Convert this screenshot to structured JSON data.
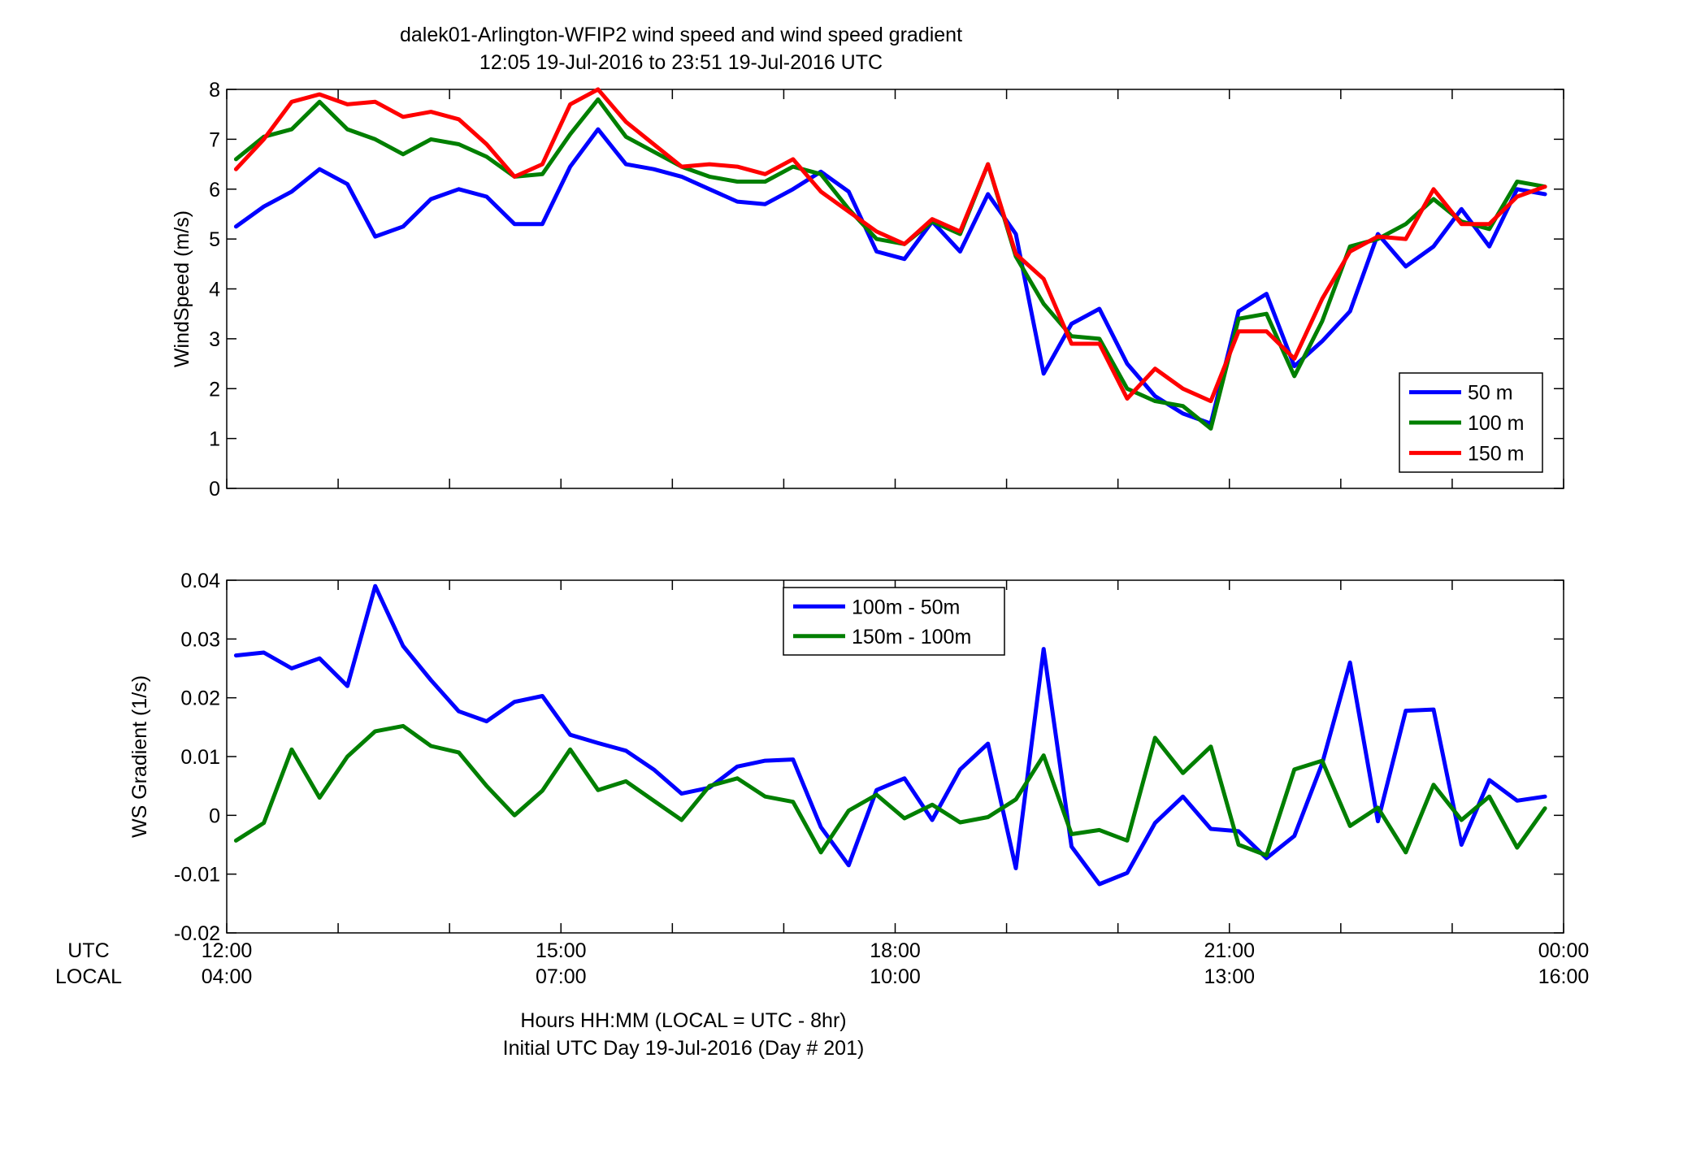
{
  "figure": {
    "title_line1": "dalek01-Arlington-WFIP2  wind speed and wind speed gradient",
    "title_line2": "12:05 19-Jul-2016 to 23:51 19-Jul-2016  UTC",
    "xlabel_line1": "Hours HH:MM  (LOCAL = UTC - 8hr)",
    "xlabel_line2": "Initial UTC Day 19-Jul-2016 (Day # 201)",
    "row_label_utc": "UTC",
    "row_label_local": "LOCAL"
  },
  "chart_data": [
    {
      "type": "line",
      "ylabel": "WindSpeed (m/s)",
      "xlim": [
        12,
        24
      ],
      "ylim": [
        0,
        8
      ],
      "yticks": [
        0,
        1,
        2,
        3,
        4,
        5,
        6,
        7,
        8
      ],
      "ytick_labels": [
        "0",
        "1",
        "2",
        "3",
        "4",
        "5",
        "6",
        "7",
        "8"
      ],
      "grid": false,
      "legend_position": "lower-right",
      "x": [
        12.083,
        12.333,
        12.583,
        12.833,
        13.083,
        13.333,
        13.583,
        13.833,
        14.083,
        14.333,
        14.583,
        14.833,
        15.083,
        15.333,
        15.583,
        15.833,
        16.083,
        16.333,
        16.583,
        16.833,
        17.083,
        17.333,
        17.583,
        17.833,
        18.083,
        18.333,
        18.583,
        18.833,
        19.083,
        19.333,
        19.583,
        19.833,
        20.083,
        20.333,
        20.583,
        20.833,
        21.083,
        21.333,
        21.583,
        21.833,
        22.083,
        22.333,
        22.583,
        22.833,
        23.083,
        23.333,
        23.583,
        23.833
      ],
      "series": [
        {
          "name": "50 m",
          "color": "#0000ff",
          "values": [
            5.25,
            5.65,
            5.95,
            6.4,
            6.1,
            5.05,
            5.25,
            5.8,
            6.0,
            5.85,
            5.3,
            5.3,
            6.45,
            7.2,
            6.5,
            6.4,
            6.25,
            6.0,
            5.75,
            5.7,
            6.0,
            6.35,
            5.95,
            4.75,
            4.6,
            5.35,
            4.75,
            5.9,
            5.1,
            2.3,
            3.3,
            3.6,
            2.5,
            1.85,
            1.5,
            1.3,
            3.55,
            3.9,
            2.45,
            2.95,
            3.55,
            5.1,
            4.45,
            4.85,
            5.6,
            4.85,
            6.0,
            5.9
          ]
        },
        {
          "name": "100 m",
          "color": "#007f00",
          "values": [
            6.6,
            7.05,
            7.2,
            7.75,
            7.2,
            7.0,
            6.7,
            7.0,
            6.9,
            6.65,
            6.25,
            6.3,
            7.1,
            7.8,
            7.05,
            6.75,
            6.45,
            6.25,
            6.15,
            6.15,
            6.45,
            6.3,
            5.6,
            5.0,
            4.9,
            5.35,
            5.1,
            6.5,
            4.65,
            3.7,
            3.05,
            3.0,
            2.0,
            1.75,
            1.65,
            1.2,
            3.4,
            3.5,
            2.25,
            3.35,
            4.85,
            5.0,
            5.3,
            5.8,
            5.35,
            5.2,
            6.15,
            6.05
          ]
        },
        {
          "name": "150 m",
          "color": "#ff0000",
          "values": [
            6.4,
            7.0,
            7.75,
            7.9,
            7.7,
            7.75,
            7.45,
            7.55,
            7.4,
            6.9,
            6.25,
            6.5,
            7.7,
            8.0,
            7.35,
            6.9,
            6.45,
            6.5,
            6.45,
            6.3,
            6.6,
            5.95,
            5.55,
            5.15,
            4.9,
            5.4,
            5.15,
            6.5,
            4.7,
            4.2,
            2.9,
            2.9,
            1.8,
            2.4,
            2.0,
            1.75,
            3.15,
            3.15,
            2.6,
            3.8,
            4.75,
            5.05,
            5.0,
            6.0,
            5.3,
            5.3,
            5.85,
            6.05
          ]
        }
      ]
    },
    {
      "type": "line",
      "ylabel": "WS Gradient (1/s)",
      "xlim": [
        12,
        24
      ],
      "ylim": [
        -0.02,
        0.04
      ],
      "yticks": [
        -0.02,
        -0.01,
        0,
        0.01,
        0.02,
        0.03,
        0.04
      ],
      "ytick_labels": [
        "-0.02",
        "-0.01",
        "0",
        "0.01",
        "0.02",
        "0.03",
        "0.04"
      ],
      "grid": false,
      "legend_position": "top-center",
      "x": [
        12.083,
        12.333,
        12.583,
        12.833,
        13.083,
        13.333,
        13.583,
        13.833,
        14.083,
        14.333,
        14.583,
        14.833,
        15.083,
        15.333,
        15.583,
        15.833,
        16.083,
        16.333,
        16.583,
        16.833,
        17.083,
        17.333,
        17.583,
        17.833,
        18.083,
        18.333,
        18.583,
        18.833,
        19.083,
        19.333,
        19.583,
        19.833,
        20.083,
        20.333,
        20.583,
        20.833,
        21.083,
        21.333,
        21.583,
        21.833,
        22.083,
        22.333,
        22.583,
        22.833,
        23.083,
        23.333,
        23.583,
        23.833
      ],
      "series": [
        {
          "name": "100m - 50m",
          "color": "#0000ff",
          "values": [
            0.0272,
            0.0277,
            0.025,
            0.0267,
            0.022,
            0.039,
            0.0288,
            0.023,
            0.0177,
            0.016,
            0.0193,
            0.0203,
            0.0137,
            0.0123,
            0.011,
            0.0078,
            0.0037,
            0.0047,
            0.0083,
            0.0093,
            0.0095,
            -0.002,
            -0.0085,
            0.0043,
            0.0063,
            -0.0008,
            0.0078,
            0.0122,
            -0.009,
            0.0283,
            -0.0053,
            -0.0117,
            -0.0098,
            -0.0013,
            0.0032,
            -0.0023,
            -0.0027,
            -0.0073,
            -0.0035,
            0.0088,
            0.026,
            -0.001,
            0.0178,
            0.018,
            -0.005,
            0.006,
            0.0025,
            0.0032
          ]
        },
        {
          "name": "150m - 100m",
          "color": "#007f00",
          "values": [
            -0.0043,
            -0.0013,
            0.0112,
            0.003,
            0.01,
            0.0143,
            0.0152,
            0.0118,
            0.0107,
            0.005,
            0.0,
            0.0042,
            0.0112,
            0.0043,
            0.0058,
            0.0025,
            -0.0008,
            0.005,
            0.0063,
            0.0032,
            0.0023,
            -0.0063,
            0.0008,
            0.0035,
            -0.0005,
            0.0018,
            -0.0012,
            -0.0003,
            0.0027,
            0.0102,
            -0.0032,
            -0.0025,
            -0.0043,
            0.0132,
            0.0072,
            0.0117,
            -0.005,
            -0.0068,
            0.0078,
            0.0093,
            -0.0018,
            0.0013,
            -0.0063,
            0.0052,
            -0.0008,
            0.0032,
            -0.0055,
            0.0012
          ]
        }
      ]
    }
  ],
  "xaxis": {
    "ticks": [
      12,
      15,
      18,
      21,
      24
    ],
    "utc_labels": [
      "12:00",
      "15:00",
      "18:00",
      "21:00",
      "00:00"
    ],
    "local_labels": [
      "04:00",
      "07:00",
      "10:00",
      "13:00",
      "16:00"
    ]
  }
}
